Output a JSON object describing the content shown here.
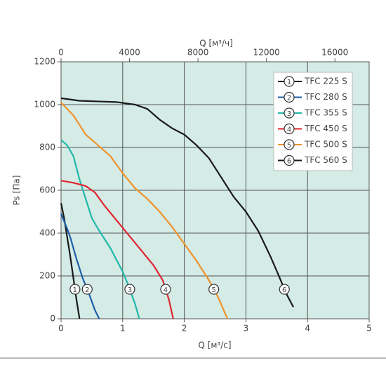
{
  "chart_data": {
    "type": "line",
    "x_label": "Q [м³/с]",
    "y_label": "Ps [Па]",
    "x2_label": "Q [м³/ч]",
    "xlim": [
      0,
      5
    ],
    "xticks": [
      0,
      1,
      2,
      3,
      4,
      5
    ],
    "ylim": [
      0,
      1200
    ],
    "yticks": [
      0,
      200,
      400,
      600,
      800,
      1000,
      1200
    ],
    "x2lim": [
      0,
      18000
    ],
    "x2ticks": [
      0,
      4000,
      8000,
      12000,
      16000
    ],
    "grid": true,
    "legend": "upper right",
    "background": "#d4ebe6",
    "series": [
      {
        "name": "TFC 225 S",
        "label": "1",
        "color": "#1a1a1a",
        "x": [
          0,
          0.05,
          0.1,
          0.15,
          0.2,
          0.25,
          0.3
        ],
        "values": [
          540,
          470,
          380,
          290,
          190,
          90,
          0
        ]
      },
      {
        "name": "TFC 280 S",
        "label": "2",
        "color": "#1f5fa8",
        "x": [
          0,
          0.1,
          0.15,
          0.25,
          0.35,
          0.45,
          0.55,
          0.62
        ],
        "values": [
          490,
          420,
          380,
          280,
          190,
          120,
          40,
          0
        ]
      },
      {
        "name": "TFC 355 S",
        "label": "3",
        "color": "#22b8a8",
        "x": [
          0,
          0.1,
          0.2,
          0.3,
          0.4,
          0.5,
          0.6,
          0.8,
          1.0,
          1.1,
          1.2,
          1.27
        ],
        "values": [
          835,
          810,
          760,
          650,
          560,
          470,
          420,
          330,
          220,
          150,
          70,
          0
        ]
      },
      {
        "name": "TFC 450 S",
        "label": "4",
        "color": "#e0262f",
        "x": [
          0,
          0.2,
          0.4,
          0.55,
          0.7,
          0.9,
          1.1,
          1.3,
          1.5,
          1.65,
          1.75,
          1.82
        ],
        "values": [
          645,
          635,
          620,
          590,
          530,
          460,
          390,
          320,
          250,
          180,
          90,
          0
        ]
      },
      {
        "name": "TFC 500 S",
        "label": "5",
        "color": "#f0922b",
        "x": [
          0,
          0.2,
          0.4,
          0.8,
          1.0,
          1.2,
          1.4,
          1.6,
          1.8,
          2.0,
          2.2,
          2.4,
          2.55,
          2.7
        ],
        "values": [
          1010,
          950,
          860,
          760,
          680,
          610,
          560,
          500,
          430,
          350,
          270,
          180,
          100,
          0
        ]
      },
      {
        "name": "TFC 560 S",
        "label": "6",
        "color": "#1a1a1a",
        "x": [
          0,
          0.3,
          0.6,
          0.9,
          1.2,
          1.4,
          1.6,
          1.8,
          2.0,
          2.2,
          2.4,
          2.6,
          2.8,
          3.0,
          3.2,
          3.4,
          3.55,
          3.65,
          3.77
        ],
        "values": [
          1030,
          1018,
          1015,
          1012,
          1000,
          980,
          930,
          890,
          860,
          810,
          750,
          660,
          570,
          500,
          410,
          290,
          190,
          120,
          55
        ]
      }
    ]
  }
}
